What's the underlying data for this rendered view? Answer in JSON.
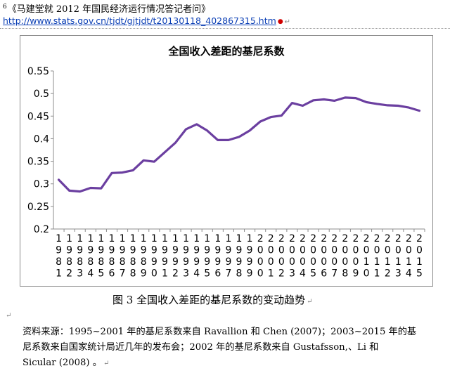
{
  "footnote": {
    "number": "6",
    "title": "《马建堂就 2012 年国民经济运行情况答记者问》",
    "url": "http://www.stats.gov.cn/tjdt/gjtjdt/t20130118_402867315.htm"
  },
  "chart_data": {
    "type": "line",
    "title": "全国收入差距的基尼系数",
    "xlabel": "",
    "ylabel": "",
    "ylim": [
      0.2,
      0.55
    ],
    "yticks": [
      "0.55",
      "0.5",
      "0.45",
      "0.4",
      "0.35",
      "0.3",
      "0.25",
      "0.2"
    ],
    "grid": false,
    "legend": "none",
    "line_color": "#6b3fa0",
    "x": [
      "1981",
      "1982",
      "1983",
      "1984",
      "1985",
      "1986",
      "1987",
      "1988",
      "1989",
      "1990",
      "1991",
      "1992",
      "1993",
      "1994",
      "1995",
      "1996",
      "1997",
      "1998",
      "1999",
      "2000",
      "2001",
      "2002",
      "2003",
      "2004",
      "2005",
      "2006",
      "2007",
      "2008",
      "2009",
      "2010",
      "2011",
      "2012",
      "2013",
      "2014",
      "2015"
    ],
    "values": [
      0.309,
      0.285,
      0.283,
      0.291,
      0.29,
      0.324,
      0.325,
      0.33,
      0.352,
      0.349,
      0.37,
      0.391,
      0.421,
      0.432,
      0.418,
      0.397,
      0.397,
      0.404,
      0.418,
      0.438,
      0.448,
      0.451,
      0.479,
      0.473,
      0.485,
      0.487,
      0.484,
      0.491,
      0.49,
      0.481,
      0.477,
      0.474,
      0.473,
      0.469,
      0.462
    ]
  },
  "caption": "图 3  全国收入差距的基尼系数的变动趋势",
  "source_lines": [
    "资料来源：1995~2001 年的基尼系数来自 Ravallion  和 Chen (2007)；2003~2015 年的基",
    "尼系数来自国家统计局近几年的发布会；2002  年的基尼系数来自  Gustafsson,、Li  和",
    "Sicular (2008) 。"
  ],
  "marks": {
    "red_dot": "●",
    "return": "↵"
  }
}
